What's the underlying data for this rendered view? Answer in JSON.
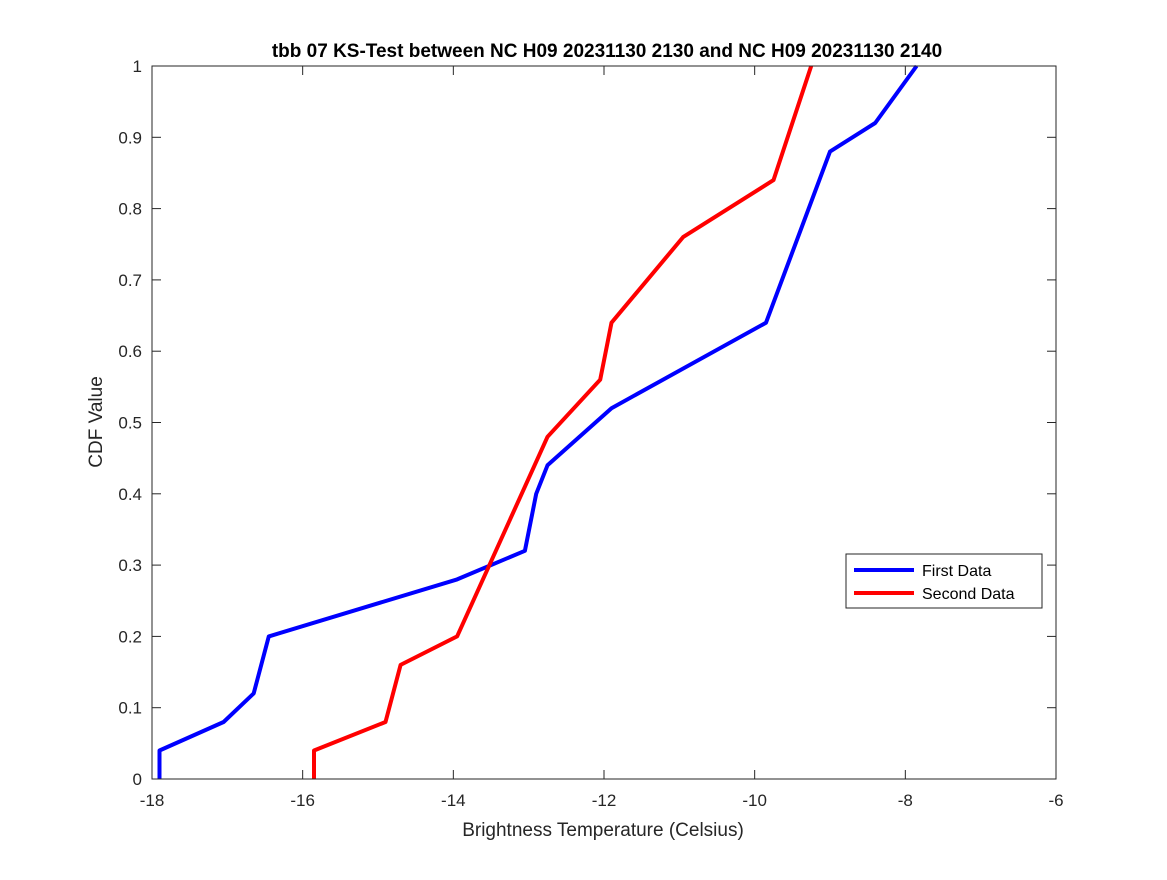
{
  "chart_data": {
    "type": "line",
    "title": "tbb 07 KS-Test between NC H09 20231130 2130 and NC H09 20231130 2140",
    "xlabel": "Brightness Temperature (Celsius)",
    "ylabel": "CDF Value",
    "xlim": [
      -18,
      -6
    ],
    "ylim": [
      0,
      1
    ],
    "xticks": [
      -18,
      -16,
      -14,
      -12,
      -10,
      -8,
      -6
    ],
    "yticks": [
      0,
      0.1,
      0.2,
      0.3,
      0.4,
      0.5,
      0.6,
      0.7,
      0.8,
      0.9,
      1
    ],
    "grid": false,
    "box": true,
    "legend_location": "right, slightly below center",
    "series": [
      {
        "name": "First Data",
        "color": "#0000ff",
        "x": [
          -17.9,
          -17.9,
          -17.05,
          -16.65,
          -16.45,
          -13.95,
          -13.05,
          -12.9,
          -12.75,
          -11.9,
          -9.85,
          -9.0,
          -8.4,
          -7.85
        ],
        "y": [
          0,
          0.04,
          0.08,
          0.12,
          0.2,
          0.28,
          0.32,
          0.4,
          0.44,
          0.52,
          0.64,
          0.88,
          0.92,
          1.0
        ]
      },
      {
        "name": "Second Data",
        "color": "#ff0000",
        "x": [
          -15.85,
          -15.85,
          -14.9,
          -14.7,
          -13.95,
          -12.75,
          -12.05,
          -11.9,
          -10.95,
          -9.75,
          -9.25
        ],
        "y": [
          0,
          0.04,
          0.08,
          0.16,
          0.2,
          0.48,
          0.56,
          0.64,
          0.76,
          0.84,
          1.0
        ]
      }
    ]
  }
}
